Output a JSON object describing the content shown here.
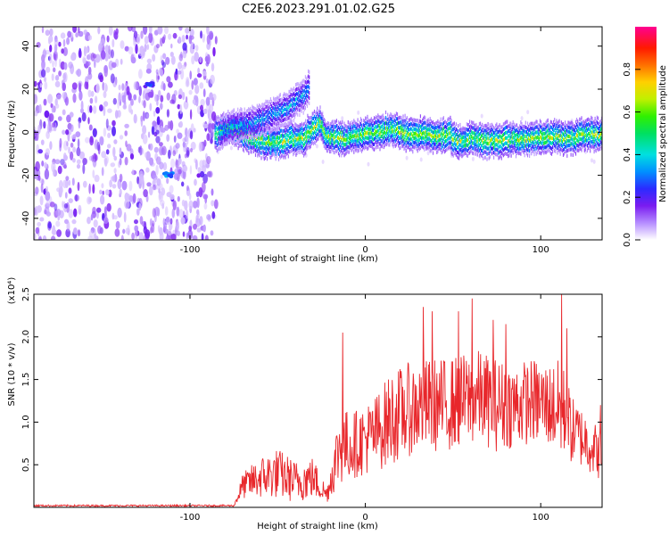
{
  "figure": {
    "title": "C2E6.2023.291.01.02.G25"
  },
  "chart_data": [
    {
      "type": "heatmap",
      "title": "C2E6.2023.291.01.02.G25",
      "xlabel": "Height of straight line (km)",
      "ylabel": "Frequency (Hz)",
      "xlim": [
        -189,
        135
      ],
      "ylim": [
        -50,
        49
      ],
      "x_ticks": [
        "-100",
        "0",
        "100"
      ],
      "y_ticks": [
        "40",
        "20",
        "0",
        "-20",
        "-40"
      ],
      "colorbar": {
        "label": "Normalized spectral amplitude",
        "range": [
          0.0,
          1.0
        ],
        "ticks": [
          "0.0",
          "0.2",
          "0.4",
          "0.6",
          "0.8"
        ]
      },
      "noise_region_x": [
        -189,
        -85
      ],
      "main_ridge": [
        [
          -84,
          0
        ],
        [
          -78,
          2
        ],
        [
          -72,
          0
        ],
        [
          -66,
          -2
        ],
        [
          -60,
          -4
        ],
        [
          -54,
          -5
        ],
        [
          -48,
          -5
        ],
        [
          -42,
          -3
        ],
        [
          -36,
          -3
        ],
        [
          -30,
          2
        ],
        [
          -26,
          4
        ],
        [
          -22,
          -2
        ],
        [
          -18,
          -2
        ],
        [
          -12,
          -3
        ],
        [
          -6,
          -2
        ],
        [
          0,
          -1
        ],
        [
          6,
          0
        ],
        [
          12,
          1
        ],
        [
          18,
          1
        ],
        [
          24,
          -1
        ],
        [
          30,
          -1
        ],
        [
          36,
          -1
        ],
        [
          42,
          -2
        ],
        [
          48,
          -1
        ],
        [
          52,
          -5
        ],
        [
          56,
          -4
        ],
        [
          60,
          -3
        ],
        [
          66,
          -4
        ],
        [
          72,
          -4
        ],
        [
          78,
          -4
        ],
        [
          84,
          -3
        ],
        [
          90,
          -3
        ],
        [
          96,
          -3
        ],
        [
          102,
          -2
        ],
        [
          108,
          -2
        ],
        [
          114,
          -3
        ],
        [
          120,
          -2
        ],
        [
          126,
          -1
        ],
        [
          132,
          -1
        ],
        [
          135,
          -1
        ]
      ],
      "upper_branch": [
        [
          -84,
          0
        ],
        [
          -78,
          2
        ],
        [
          -72,
          3
        ],
        [
          -66,
          4
        ],
        [
          -60,
          6
        ],
        [
          -54,
          8
        ],
        [
          -48,
          10
        ],
        [
          -42,
          13
        ],
        [
          -36,
          17
        ],
        [
          -32,
          21
        ]
      ],
      "isolated_blobs": [
        {
          "x": -112,
          "y": -20,
          "amp": 0.35
        },
        {
          "x": -123,
          "y": 22,
          "amp": 0.25
        }
      ]
    },
    {
      "type": "line",
      "xlabel": "Height of straight line (km)",
      "ylabel": "SNR (10 * v/v)",
      "y_multiplier": "(x10⁴)",
      "xlim": [
        -189,
        135
      ],
      "ylim": [
        0,
        2.5
      ],
      "x_ticks": [
        "-100",
        "0",
        "100"
      ],
      "y_ticks": [
        "0.5",
        "1.0",
        "1.5",
        "2.0",
        "2.5"
      ],
      "series": [
        {
          "color": "#e8272b",
          "envelope_x": [
            -189,
            -75,
            -70,
            -60,
            -50,
            -40,
            -30,
            -22,
            -15,
            -5,
            5,
            15,
            25,
            35,
            45,
            55,
            65,
            75,
            85,
            95,
            105,
            112,
            118,
            125,
            135
          ],
          "envelope_mean": [
            0.02,
            0.02,
            0.25,
            0.35,
            0.4,
            0.3,
            0.35,
            0.15,
            0.7,
            0.75,
            0.85,
            1.05,
            1.15,
            1.2,
            1.2,
            1.25,
            1.3,
            1.2,
            1.2,
            1.25,
            1.2,
            1.15,
            0.9,
            0.8,
            0.6
          ],
          "envelope_spread": [
            0.01,
            0.01,
            0.15,
            0.25,
            0.3,
            0.25,
            0.25,
            0.1,
            0.45,
            0.4,
            0.45,
            0.55,
            0.55,
            0.55,
            0.55,
            0.55,
            0.55,
            0.55,
            0.5,
            0.5,
            0.5,
            0.6,
            0.4,
            0.35,
            0.3
          ],
          "peaks": [
            {
              "x": -13,
              "y": 2.05
            },
            {
              "x": 33,
              "y": 2.35
            },
            {
              "x": 38,
              "y": 2.3
            },
            {
              "x": 53,
              "y": 2.3
            },
            {
              "x": 61,
              "y": 2.45
            },
            {
              "x": 73,
              "y": 2.2
            },
            {
              "x": 80,
              "y": 2.15
            },
            {
              "x": 112,
              "y": 2.52
            },
            {
              "x": 115,
              "y": 2.1
            },
            {
              "x": 134,
              "y": 1.2
            }
          ]
        }
      ]
    }
  ]
}
